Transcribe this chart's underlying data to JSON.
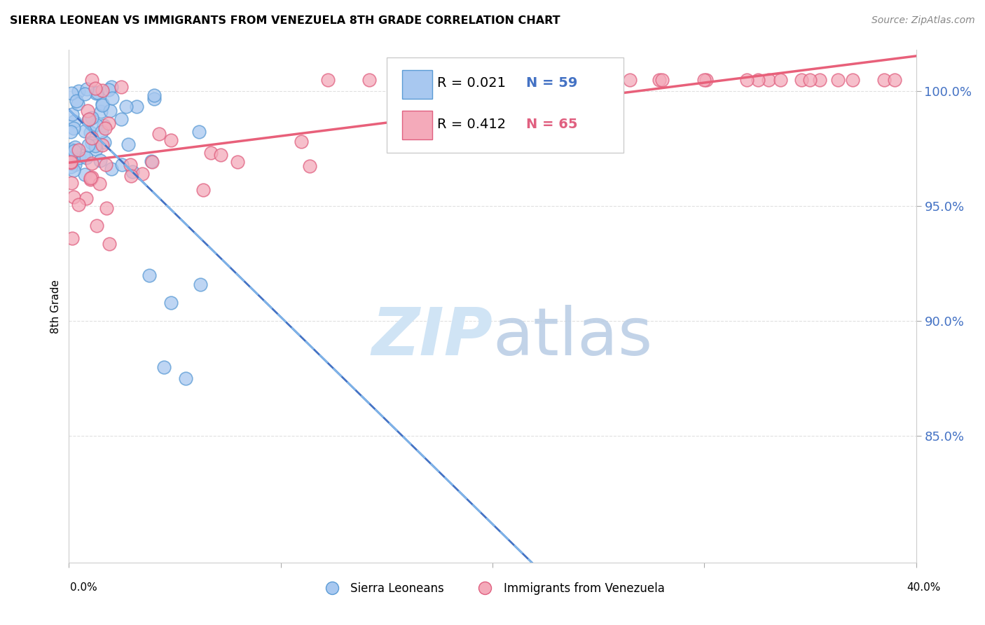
{
  "title": "SIERRA LEONEAN VS IMMIGRANTS FROM VENEZUELA 8TH GRADE CORRELATION CHART",
  "source": "Source: ZipAtlas.com",
  "ylabel": "8th Grade",
  "xlim": [
    0.0,
    0.4
  ],
  "ylim": [
    0.795,
    1.018
  ],
  "ytick_vals": [
    0.85,
    0.9,
    0.95,
    1.0
  ],
  "ytick_labels": [
    "85.0%",
    "90.0%",
    "95.0%",
    "100.0%"
  ],
  "xtick_vals": [
    0.0,
    0.1,
    0.2,
    0.3,
    0.4
  ],
  "legend_r1": "R = 0.021",
  "legend_n1": "N = 59",
  "legend_r2": "R = 0.412",
  "legend_n2": "N = 65",
  "legend_label1": "Sierra Leoneans",
  "legend_label2": "Immigrants from Venezuela",
  "color_blue_fill": "#A8C8F0",
  "color_blue_edge": "#5B9BD5",
  "color_pink_fill": "#F4AABA",
  "color_pink_edge": "#E06080",
  "color_blue_line": "#4472C4",
  "color_pink_line": "#E8607A",
  "color_dashed": "#7EB3E8",
  "color_ytick": "#4472C4",
  "watermark_color": "#D0E4F5",
  "background": "#ffffff",
  "grid_color": "#CCCCCC"
}
